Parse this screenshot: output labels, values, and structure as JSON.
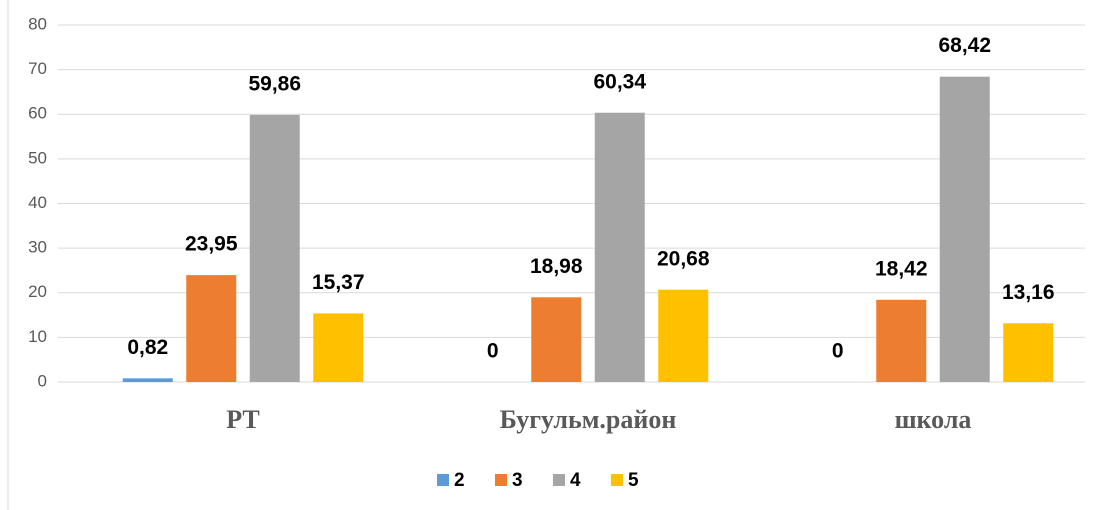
{
  "chart_data": {
    "type": "bar",
    "categories": [
      "РТ",
      "Бугульм.район",
      "школа"
    ],
    "series": [
      {
        "name": "2",
        "color": "#5b9bd5",
        "values": [
          0.82,
          0,
          0
        ],
        "value_labels": [
          "0,82",
          "0",
          "0"
        ]
      },
      {
        "name": "3",
        "color": "#ed7d31",
        "values": [
          23.95,
          18.98,
          18.42
        ],
        "value_labels": [
          "23,95",
          "18,98",
          "18,42"
        ]
      },
      {
        "name": "4",
        "color": "#a5a5a5",
        "values": [
          59.86,
          60.34,
          68.42
        ],
        "value_labels": [
          "59,86",
          "60,34",
          "68,42"
        ]
      },
      {
        "name": "5",
        "color": "#ffc000",
        "values": [
          15.37,
          20.68,
          13.16
        ],
        "value_labels": [
          "15,37",
          "20,68",
          "13,16"
        ]
      }
    ],
    "ylim": [
      0,
      80
    ],
    "yticks": [
      0,
      10,
      20,
      30,
      40,
      50,
      60,
      70,
      80
    ],
    "grid": true,
    "legend": "bottom"
  }
}
